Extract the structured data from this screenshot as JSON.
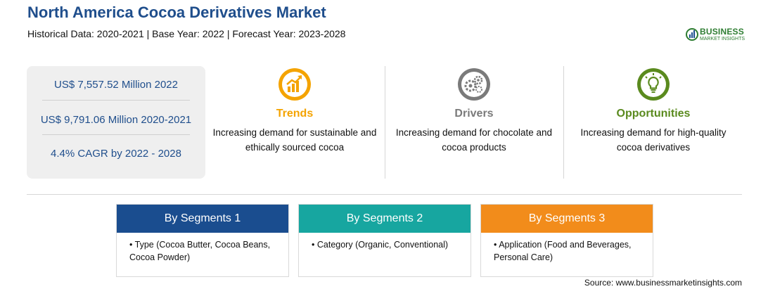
{
  "header": {
    "title": "North America Cocoa Derivatives Market",
    "subtitle": "Historical Data: 2020-2021 | Base Year: 2022 | Forecast Year: 2023-2028"
  },
  "logo": {
    "line1": "BUSINESS",
    "line2": "MARKET INSIGHTS"
  },
  "stats": [
    "US$ 7,557.52 Million 2022",
    "US$ 9,791.06 Million 2020-2021",
    "4.4% CAGR by 2022 - 2028"
  ],
  "columns": {
    "trends": {
      "label": "Trends",
      "desc": "Increasing demand for sustainable and ethically sourced cocoa",
      "color": "#f4a300",
      "icon": "rising-chart-icon"
    },
    "drivers": {
      "label": "Drivers",
      "desc": "Increasing demand for chocolate and cocoa products",
      "color": "#7a7a7a",
      "icon": "gears-icon"
    },
    "opportunities": {
      "label": "Opportunities",
      "desc": "Increasing demand for high-quality cocoa derivatives",
      "color": "#5a8a1e",
      "icon": "lightbulb-icon"
    }
  },
  "segments": [
    {
      "title": "By Segments 1",
      "text": "Type (Cocoa Butter, Cocoa Beans, Cocoa Powder)",
      "color": "#1a4d8f"
    },
    {
      "title": "By Segments 2",
      "text": "Category (Organic, Conventional)",
      "color": "#17a6a0"
    },
    {
      "title": "By Segments 3",
      "text": "Application (Food and Beverages, Personal Care)",
      "color": "#f28c1b"
    }
  ],
  "bullet": "•",
  "source": "Source: www.businessmarketinsights.com"
}
